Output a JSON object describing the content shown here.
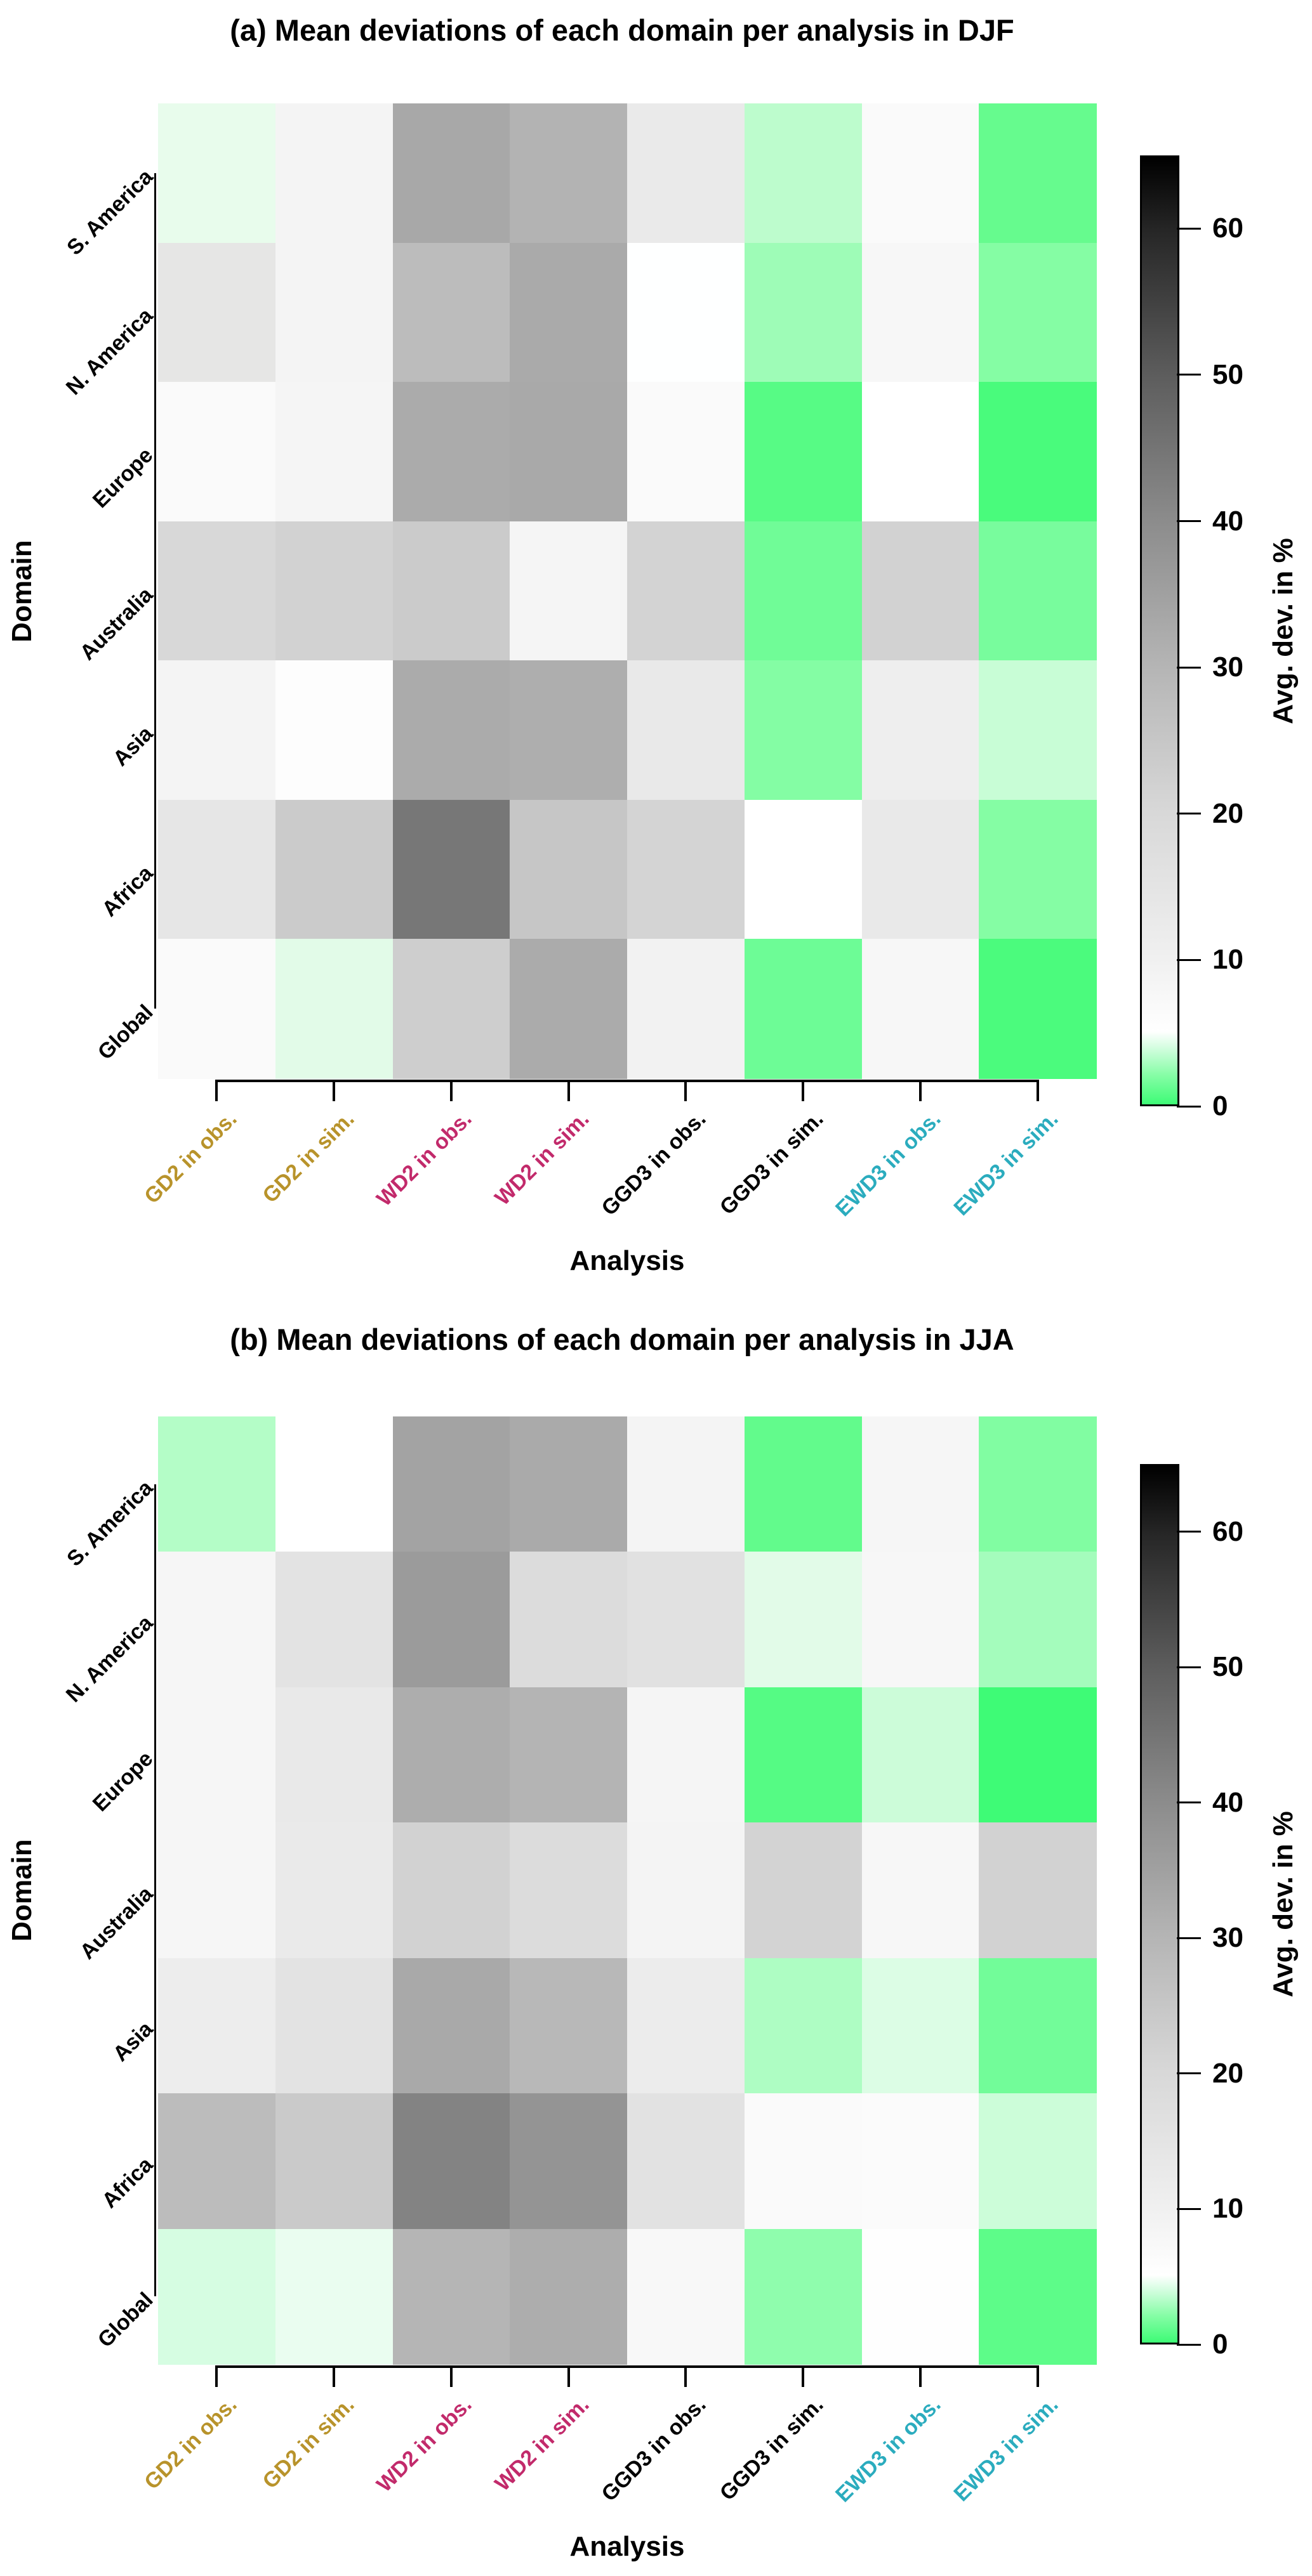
{
  "figure": {
    "background": "#ffffff"
  },
  "label_colors": {
    "gd2": "#b8932b",
    "wd2": "#c22a6b",
    "ggd3": "#000000",
    "ewd3": "#2bacbe"
  },
  "chart_data": [
    {
      "type": "heatmap",
      "panel": "a",
      "title": "(a) Mean deviations of each domain per analysis in DJF",
      "xlabel": "Analysis",
      "ylabel": "Domain",
      "value_unit": "%",
      "x_categories": [
        "GD2 in obs.",
        "GD2 in sim.",
        "WD2 in obs.",
        "WD2 in sim.",
        "GGD3 in obs.",
        "GGD3 in sim.",
        "EWD3 in obs.",
        "EWD3 in sim."
      ],
      "x_category_colors": [
        "#b8932b",
        "#b8932b",
        "#c22a6b",
        "#c22a6b",
        "#000000",
        "#000000",
        "#2bacbe",
        "#2bacbe"
      ],
      "y_categories": [
        "S. America",
        "N. America",
        "Europe",
        "Australia",
        "Asia",
        "Africa",
        "Global"
      ],
      "series": [
        {
          "name": "S. America",
          "values": [
            4.4,
            7.6,
            25.5,
            22.9,
            9.9,
            3.3,
            6.2,
            1.1
          ]
        },
        {
          "name": "N. America",
          "values": [
            10.9,
            7.6,
            20.8,
            25.0,
            5.1,
            2.5,
            6.9,
            1.9
          ]
        },
        {
          "name": "Europe",
          "values": [
            6.2,
            7.4,
            24.8,
            25.3,
            6.2,
            0.7,
            5.0,
            0.3
          ]
        },
        {
          "name": "Australia",
          "values": [
            14.2,
            15.6,
            17.2,
            7.4,
            15.4,
            1.3,
            15.6,
            1.5
          ]
        },
        {
          "name": "Asia",
          "values": [
            7.6,
            5.5,
            24.8,
            24.1,
            10.2,
            1.8,
            9.0,
            3.6
          ]
        },
        {
          "name": "Africa",
          "values": [
            10.9,
            17.2,
            37.0,
            18.4,
            15.1,
            5.0,
            10.2,
            1.9
          ]
        },
        {
          "name": "Global",
          "values": [
            6.2,
            4.3,
            16.5,
            24.8,
            8.1,
            1.2,
            6.9,
            0.4
          ]
        }
      ],
      "cell_colors": [
        [
          "#e8fcec",
          "#f4f4f4",
          "#a8a8a8",
          "#b3b3b3",
          "#eaeaea",
          "#bdfccd",
          "#fafafa",
          "#66fb8e"
        ],
        [
          "#e6e6e5",
          "#f4f4f4",
          "#bcbcbc",
          "#aaaaaa",
          "#feffff",
          "#9efcb7",
          "#f7f7f7",
          "#85fda4"
        ],
        [
          "#fafafa",
          "#f5f5f5",
          "#ababab",
          "#a9a9a9",
          "#fafafa",
          "#57fb85",
          "#ffffff",
          "#49fb7c"
        ],
        [
          "#d8d8d8",
          "#d2d2d2",
          "#cbcbcb",
          "#f5f5f5",
          "#d3d3d3",
          "#70fc97",
          "#d2d2d2",
          "#78fc9d"
        ],
        [
          "#f4f4f4",
          "#fdfdfd",
          "#ababab",
          "#aeaeae",
          "#e9e9e9",
          "#84fda4",
          "#eeeeee",
          "#c8fdd6"
        ],
        [
          "#e6e6e6",
          "#cbcbcb",
          "#777777",
          "#c6c6c6",
          "#d4d4d4",
          "#ffffff",
          "#e9e9e9",
          "#85fda4"
        ],
        [
          "#fafafa",
          "#e2fbe8",
          "#cecece",
          "#ababab",
          "#f2f2f2",
          "#6dfc96",
          "#f7f7f7",
          "#4bfb7d"
        ]
      ],
      "colorbar": {
        "label": "Avg. dev. in %",
        "min": 0,
        "max": 65,
        "ticks": [
          0,
          10,
          20,
          30,
          40,
          50,
          60
        ],
        "stops": [
          {
            "value": 0,
            "color": "#3efb76"
          },
          {
            "value": 2,
            "color": "#86fda6"
          },
          {
            "value": 4,
            "color": "#d8fde3"
          },
          {
            "value": 5,
            "color": "#ffffff"
          },
          {
            "value": 10,
            "color": "#f0f0f0"
          },
          {
            "value": 20,
            "color": "#d8d8d8"
          },
          {
            "value": 30,
            "color": "#b5b5b5"
          },
          {
            "value": 40,
            "color": "#8c8c8c"
          },
          {
            "value": 50,
            "color": "#5d5d5d"
          },
          {
            "value": 60,
            "color": "#262626"
          },
          {
            "value": 65,
            "color": "#000000"
          }
        ]
      }
    },
    {
      "type": "heatmap",
      "panel": "b",
      "title": "(b) Mean deviations of each domain per analysis in JJA",
      "xlabel": "Analysis",
      "ylabel": "Domain",
      "value_unit": "%",
      "x_categories": [
        "GD2 in obs.",
        "GD2 in sim.",
        "WD2 in obs.",
        "WD2 in sim.",
        "GGD3 in obs.",
        "GGD3 in sim.",
        "EWD3 in obs.",
        "EWD3 in sim."
      ],
      "x_category_colors": [
        "#b8932b",
        "#b8932b",
        "#c22a6b",
        "#c22a6b",
        "#000000",
        "#000000",
        "#2bacbe",
        "#2bacbe"
      ],
      "y_categories": [
        "S. America",
        "N. America",
        "Europe",
        "Australia",
        "Asia",
        "Africa",
        "Global"
      ],
      "series": [
        {
          "name": "S. America",
          "values": [
            3.1,
            5.0,
            26.7,
            25.0,
            7.6,
            1.0,
            7.1,
            1.8
          ]
        },
        {
          "name": "N. America",
          "values": [
            7.1,
            11.6,
            28.5,
            13.2,
            12.1,
            4.3,
            6.9,
            2.7
          ]
        },
        {
          "name": "Europe",
          "values": [
            7.1,
            10.2,
            24.3,
            22.6,
            7.4,
            0.6,
            3.7,
            0.1
          ]
        },
        {
          "name": "Australia",
          "values": [
            7.1,
            9.9,
            15.6,
            13.2,
            7.6,
            15.4,
            6.9,
            15.6
          ]
        },
        {
          "name": "Asia",
          "values": [
            9.2,
            11.6,
            25.3,
            21.7,
            9.5,
            2.9,
            4.1,
            1.4
          ]
        },
        {
          "name": "Africa",
          "values": [
            20.8,
            17.5,
            34.2,
            30.2,
            11.8,
            6.2,
            5.9,
            3.7
          ]
        },
        {
          "name": "Global",
          "values": [
            3.9,
            4.5,
            22.4,
            24.3,
            6.6,
            2.1,
            5.1,
            0.8
          ]
        }
      ],
      "cell_colors": [
        [
          "#b4fdc7",
          "#ffffff",
          "#a3a3a3",
          "#aaaaaa",
          "#f4f4f4",
          "#62fb8c",
          "#f6f6f6",
          "#81fda2"
        ],
        [
          "#f6f6f6",
          "#e3e3e3",
          "#9b9b9b",
          "#dcdcdc",
          "#e1e1e1",
          "#e2fbe8",
          "#f7f7f7",
          "#a4fcbc"
        ],
        [
          "#f6f6f6",
          "#e9e9e9",
          "#adadad",
          "#b4b4b4",
          "#f5f5f5",
          "#55fb84",
          "#ccfcd9",
          "#3efb76"
        ],
        [
          "#f6f6f6",
          "#eaeaea",
          "#d2d2d2",
          "#dcdcdc",
          "#f4f4f4",
          "#d3d3d3",
          "#f7f7f7",
          "#d2d2d2"
        ],
        [
          "#ededed",
          "#e3e3e3",
          "#a9a9a9",
          "#b8b8b8",
          "#ececec",
          "#aefdc3",
          "#dcfde5",
          "#72fc99"
        ],
        [
          "#bcbcbc",
          "#cacaca",
          "#838383",
          "#949494",
          "#e2e2e2",
          "#fafafa",
          "#fbfbfb",
          "#ccfdd9"
        ],
        [
          "#d6fde2",
          "#eafdf0",
          "#b5b5b5",
          "#adadad",
          "#f8f8f8",
          "#8ffdad",
          "#fefefe",
          "#5dfc89"
        ]
      ],
      "colorbar": {
        "label": "Avg. dev. in %",
        "min": 0,
        "max": 65,
        "ticks": [
          0,
          10,
          20,
          30,
          40,
          50,
          60
        ],
        "stops": [
          {
            "value": 0,
            "color": "#3efb76"
          },
          {
            "value": 2,
            "color": "#86fda6"
          },
          {
            "value": 4,
            "color": "#d8fde3"
          },
          {
            "value": 5,
            "color": "#ffffff"
          },
          {
            "value": 10,
            "color": "#f0f0f0"
          },
          {
            "value": 20,
            "color": "#d8d8d8"
          },
          {
            "value": 30,
            "color": "#b5b5b5"
          },
          {
            "value": 40,
            "color": "#8c8c8c"
          },
          {
            "value": 50,
            "color": "#5d5d5d"
          },
          {
            "value": 60,
            "color": "#262626"
          },
          {
            "value": 65,
            "color": "#000000"
          }
        ]
      }
    }
  ]
}
